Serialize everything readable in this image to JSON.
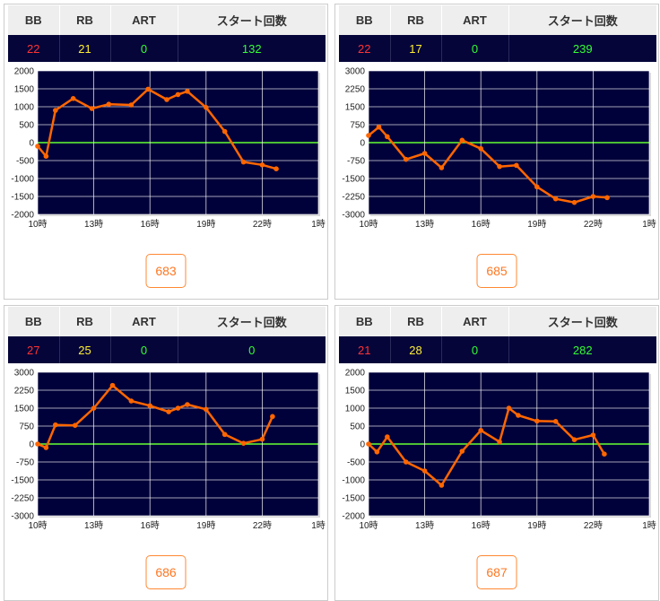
{
  "stat_headers": [
    "BB",
    "RB",
    "ART",
    "スタート回数"
  ],
  "colors": {
    "value_row_bg": "#05053a",
    "plot_bg": "#00003a",
    "grid": "#ffffff",
    "zero_line": "#66ff33",
    "series": "#ff6600",
    "bb": "#ff3333",
    "rb": "#ffee33",
    "art": "#33ff33",
    "button": "#ff7722"
  },
  "cards": [
    {
      "stats": {
        "bb": "22",
        "rb": "21",
        "art": "0",
        "start": "132"
      },
      "machine_number": "683"
    },
    {
      "stats": {
        "bb": "22",
        "rb": "17",
        "art": "0",
        "start": "239"
      },
      "machine_number": "685"
    },
    {
      "stats": {
        "bb": "27",
        "rb": "25",
        "art": "0",
        "start": "0"
      },
      "machine_number": "686"
    },
    {
      "stats": {
        "bb": "21",
        "rb": "28",
        "art": "0",
        "start": "282"
      },
      "machine_number": "687"
    }
  ],
  "chart_data": [
    {
      "type": "line",
      "xlim": [
        10,
        25
      ],
      "ylim": [
        -2000,
        2000
      ],
      "x_ticks": [
        10,
        13,
        16,
        19,
        22,
        25
      ],
      "x_tick_labels": [
        "10時",
        "13時",
        "16時",
        "19時",
        "22時",
        "1時"
      ],
      "y_ticks": [
        -2000,
        -1500,
        -1000,
        -500,
        0,
        500,
        1000,
        1500,
        2000
      ],
      "y_tick_labels": [
        "-2000",
        "-1500",
        "-1000",
        "-500",
        "0",
        "500",
        "1000",
        "1500",
        "2000"
      ],
      "grid": true,
      "series": [
        {
          "x": [
            10.0,
            10.45,
            10.95,
            11.9,
            12.9,
            13.8,
            15.0,
            15.9,
            16.9,
            17.5,
            18.0,
            19.0,
            20.0,
            21.0,
            22.0,
            22.75
          ],
          "values": [
            -100,
            -380,
            900,
            1230,
            950,
            1070,
            1050,
            1490,
            1200,
            1340,
            1430,
            980,
            310,
            -540,
            -620,
            -730
          ]
        }
      ]
    },
    {
      "type": "line",
      "xlim": [
        10,
        25
      ],
      "ylim": [
        -3000,
        3000
      ],
      "x_ticks": [
        10,
        13,
        16,
        19,
        22,
        25
      ],
      "x_tick_labels": [
        "10時",
        "13時",
        "16時",
        "19時",
        "22時",
        "1時"
      ],
      "y_ticks": [
        -3000,
        -2250,
        -1500,
        -750,
        0,
        750,
        1500,
        2250,
        3000
      ],
      "y_tick_labels": [
        "-3000",
        "-2250",
        "-1500",
        "-750",
        "0",
        "750",
        "1500",
        "2250",
        "3000"
      ],
      "grid": true,
      "series": [
        {
          "x": [
            10.0,
            10.55,
            11.0,
            12.0,
            13.0,
            13.9,
            15.0,
            16.0,
            17.0,
            17.9,
            19.0,
            20.0,
            21.0,
            22.0,
            22.75
          ],
          "values": [
            300,
            650,
            250,
            -700,
            -450,
            -1050,
            100,
            -250,
            -1000,
            -950,
            -1850,
            -2350,
            -2500,
            -2250,
            -2300
          ]
        }
      ]
    },
    {
      "type": "line",
      "xlim": [
        10,
        25
      ],
      "ylim": [
        -3000,
        3000
      ],
      "x_ticks": [
        10,
        13,
        16,
        19,
        22,
        25
      ],
      "x_tick_labels": [
        "10時",
        "13時",
        "16時",
        "19時",
        "22時",
        "1時"
      ],
      "y_ticks": [
        -3000,
        -2250,
        -1500,
        -750,
        0,
        750,
        1500,
        2250,
        3000
      ],
      "y_tick_labels": [
        "-3000",
        "-2250",
        "-1500",
        "-750",
        "0",
        "750",
        "1500",
        "2250",
        "3000"
      ],
      "grid": true,
      "series": [
        {
          "x": [
            10.0,
            10.45,
            10.95,
            12.0,
            13.0,
            14.0,
            15.0,
            16.0,
            17.0,
            17.5,
            18.0,
            19.0,
            20.0,
            21.0,
            22.0,
            22.55
          ],
          "values": [
            0,
            -150,
            800,
            780,
            1500,
            2450,
            1800,
            1600,
            1350,
            1500,
            1650,
            1450,
            400,
            30,
            200,
            1150
          ]
        }
      ]
    },
    {
      "type": "line",
      "xlim": [
        10,
        25
      ],
      "ylim": [
        -2000,
        2000
      ],
      "x_ticks": [
        10,
        13,
        16,
        19,
        22,
        25
      ],
      "x_tick_labels": [
        "10時",
        "13時",
        "16時",
        "19時",
        "22時",
        "1時"
      ],
      "y_ticks": [
        -2000,
        -1500,
        -1000,
        -500,
        0,
        500,
        1000,
        1500,
        2000
      ],
      "y_tick_labels": [
        "-2000",
        "-1500",
        "-1000",
        "-500",
        "0",
        "500",
        "1000",
        "1500",
        "2000"
      ],
      "grid": true,
      "series": [
        {
          "x": [
            10.0,
            10.45,
            11.0,
            12.0,
            13.0,
            13.9,
            15.0,
            16.0,
            17.0,
            17.5,
            18.0,
            19.0,
            20.0,
            21.0,
            22.0,
            22.6
          ],
          "values": [
            0,
            -220,
            200,
            -500,
            -750,
            -1150,
            -200,
            380,
            60,
            1000,
            800,
            640,
            630,
            120,
            250,
            -280
          ]
        }
      ]
    }
  ]
}
